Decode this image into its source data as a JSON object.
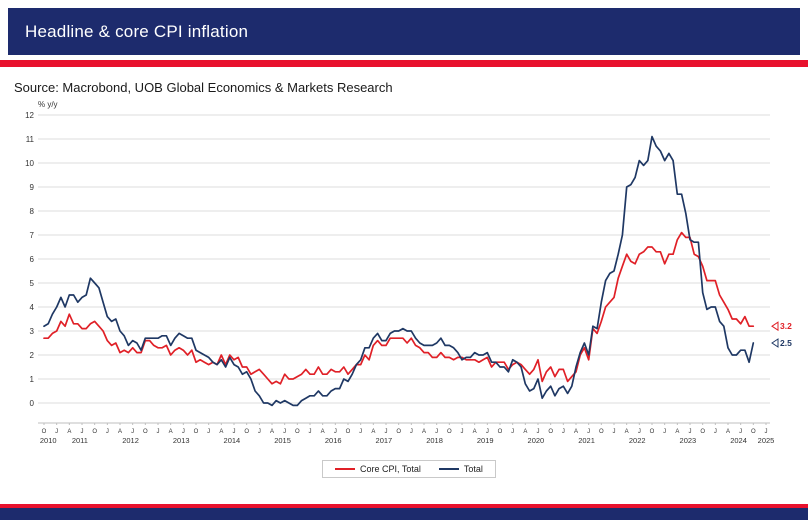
{
  "header": {
    "title": "Headline & core CPI inflation"
  },
  "source": {
    "text": "Source: Macrobond, UOB Global Economics & Markets Research"
  },
  "colors": {
    "header_navy": "#1d2b6d",
    "stripe_red": "#e8112d",
    "line_red": "#e02027",
    "line_navy": "#1f3864",
    "grid": "#dcdcdc",
    "axis_text": "#333333"
  },
  "chart_data": {
    "type": "line",
    "title": "Headline & core CPI inflation",
    "unit_label": "% y/y",
    "frequency": "monthly",
    "x_start": "2010-10",
    "x_axis_end": "2025-01",
    "ylim": [
      0,
      12
    ],
    "yticks": [
      0,
      1,
      2,
      3,
      4,
      5,
      6,
      7,
      8,
      9,
      10,
      11,
      12
    ],
    "grid": true,
    "legend_position": "bottom-center",
    "years": [
      2010,
      2011,
      2012,
      2013,
      2014,
      2015,
      2016,
      2017,
      2018,
      2019,
      2020,
      2021,
      2022,
      2023,
      2024,
      2025
    ],
    "quarter_month_letters": {
      "1": "J",
      "4": "A",
      "7": "J",
      "10": "O"
    },
    "series": [
      {
        "name": "Core CPI, Total",
        "color": "#e02027",
        "end_label": "3.2",
        "values": [
          2.7,
          2.7,
          2.9,
          3.0,
          3.4,
          3.2,
          3.7,
          3.3,
          3.3,
          3.1,
          3.1,
          3.3,
          3.4,
          3.2,
          3.0,
          2.6,
          2.4,
          2.5,
          2.1,
          2.2,
          2.1,
          2.3,
          2.1,
          2.1,
          2.6,
          2.6,
          2.4,
          2.3,
          2.3,
          2.4,
          2.0,
          2.2,
          2.3,
          2.2,
          2.0,
          2.2,
          1.7,
          1.8,
          1.7,
          1.6,
          1.7,
          1.6,
          2.0,
          1.6,
          2.0,
          1.8,
          1.9,
          1.5,
          1.5,
          1.2,
          1.3,
          1.4,
          1.2,
          1.0,
          0.8,
          0.9,
          0.8,
          1.2,
          1.0,
          1.0,
          1.1,
          1.2,
          1.4,
          1.2,
          1.2,
          1.5,
          1.2,
          1.2,
          1.4,
          1.3,
          1.3,
          1.5,
          1.2,
          1.4,
          1.6,
          1.6,
          2.0,
          1.8,
          2.4,
          2.6,
          2.4,
          2.4,
          2.7,
          2.7,
          2.7,
          2.7,
          2.5,
          2.7,
          2.4,
          2.3,
          2.1,
          2.1,
          1.9,
          1.9,
          2.1,
          1.9,
          1.9,
          1.8,
          1.9,
          1.9,
          1.8,
          1.8,
          1.8,
          1.7,
          1.8,
          1.9,
          1.5,
          1.7,
          1.7,
          1.7,
          1.4,
          1.6,
          1.7,
          1.6,
          1.4,
          1.2,
          1.4,
          1.8,
          0.9,
          1.3,
          1.5,
          1.1,
          1.4,
          1.4,
          0.9,
          1.1,
          1.3,
          2.0,
          2.3,
          1.8,
          3.1,
          2.9,
          3.4,
          4.0,
          4.2,
          4.4,
          5.2,
          5.7,
          6.2,
          5.9,
          5.8,
          6.2,
          6.3,
          6.5,
          6.5,
          6.3,
          6.3,
          5.8,
          6.2,
          6.2,
          6.8,
          7.1,
          6.9,
          6.9,
          6.2,
          6.1,
          5.7,
          5.1,
          5.1,
          5.1,
          4.5,
          4.2,
          3.9,
          3.5,
          3.5,
          3.3,
          3.6,
          3.2,
          3.2
        ]
      },
      {
        "name": "Total",
        "color": "#1f3864",
        "end_label": "2.5",
        "values": [
          3.2,
          3.3,
          3.7,
          4.0,
          4.4,
          4.0,
          4.5,
          4.5,
          4.2,
          4.4,
          4.5,
          5.2,
          5.0,
          4.8,
          4.2,
          3.6,
          3.4,
          3.5,
          3.0,
          2.8,
          2.4,
          2.6,
          2.5,
          2.2,
          2.7,
          2.7,
          2.7,
          2.7,
          2.8,
          2.8,
          2.4,
          2.7,
          2.9,
          2.8,
          2.7,
          2.7,
          2.2,
          2.1,
          2.0,
          1.9,
          1.7,
          1.6,
          1.8,
          1.5,
          1.9,
          1.6,
          1.5,
          1.2,
          1.3,
          1.0,
          0.5,
          0.3,
          0.0,
          0.0,
          -0.1,
          0.1,
          0.0,
          0.1,
          0.0,
          -0.1,
          -0.1,
          0.1,
          0.2,
          0.3,
          0.3,
          0.5,
          0.3,
          0.3,
          0.5,
          0.6,
          0.6,
          1.0,
          0.9,
          1.2,
          1.6,
          1.8,
          2.3,
          2.3,
          2.7,
          2.9,
          2.6,
          2.6,
          2.9,
          3.0,
          3.0,
          3.1,
          3.0,
          3.0,
          2.7,
          2.5,
          2.4,
          2.4,
          2.4,
          2.5,
          2.7,
          2.4,
          2.4,
          2.3,
          2.1,
          1.8,
          1.9,
          1.9,
          2.1,
          2.0,
          2.0,
          2.1,
          1.7,
          1.7,
          1.5,
          1.5,
          1.3,
          1.8,
          1.7,
          1.5,
          0.8,
          0.5,
          0.6,
          1.0,
          0.2,
          0.5,
          0.7,
          0.3,
          0.6,
          0.7,
          0.4,
          0.7,
          1.5,
          2.1,
          2.5,
          2.0,
          3.2,
          3.1,
          4.2,
          5.1,
          5.4,
          5.5,
          6.2,
          7.0,
          9.0,
          9.1,
          9.4,
          10.1,
          9.9,
          10.1,
          11.1,
          10.7,
          10.5,
          10.1,
          10.4,
          10.1,
          8.7,
          8.7,
          7.9,
          6.8,
          6.7,
          6.7,
          4.6,
          3.9,
          4.0,
          4.0,
          3.4,
          3.2,
          2.3,
          2.0,
          2.0,
          2.2,
          2.2,
          1.7,
          2.5
        ]
      }
    ]
  }
}
